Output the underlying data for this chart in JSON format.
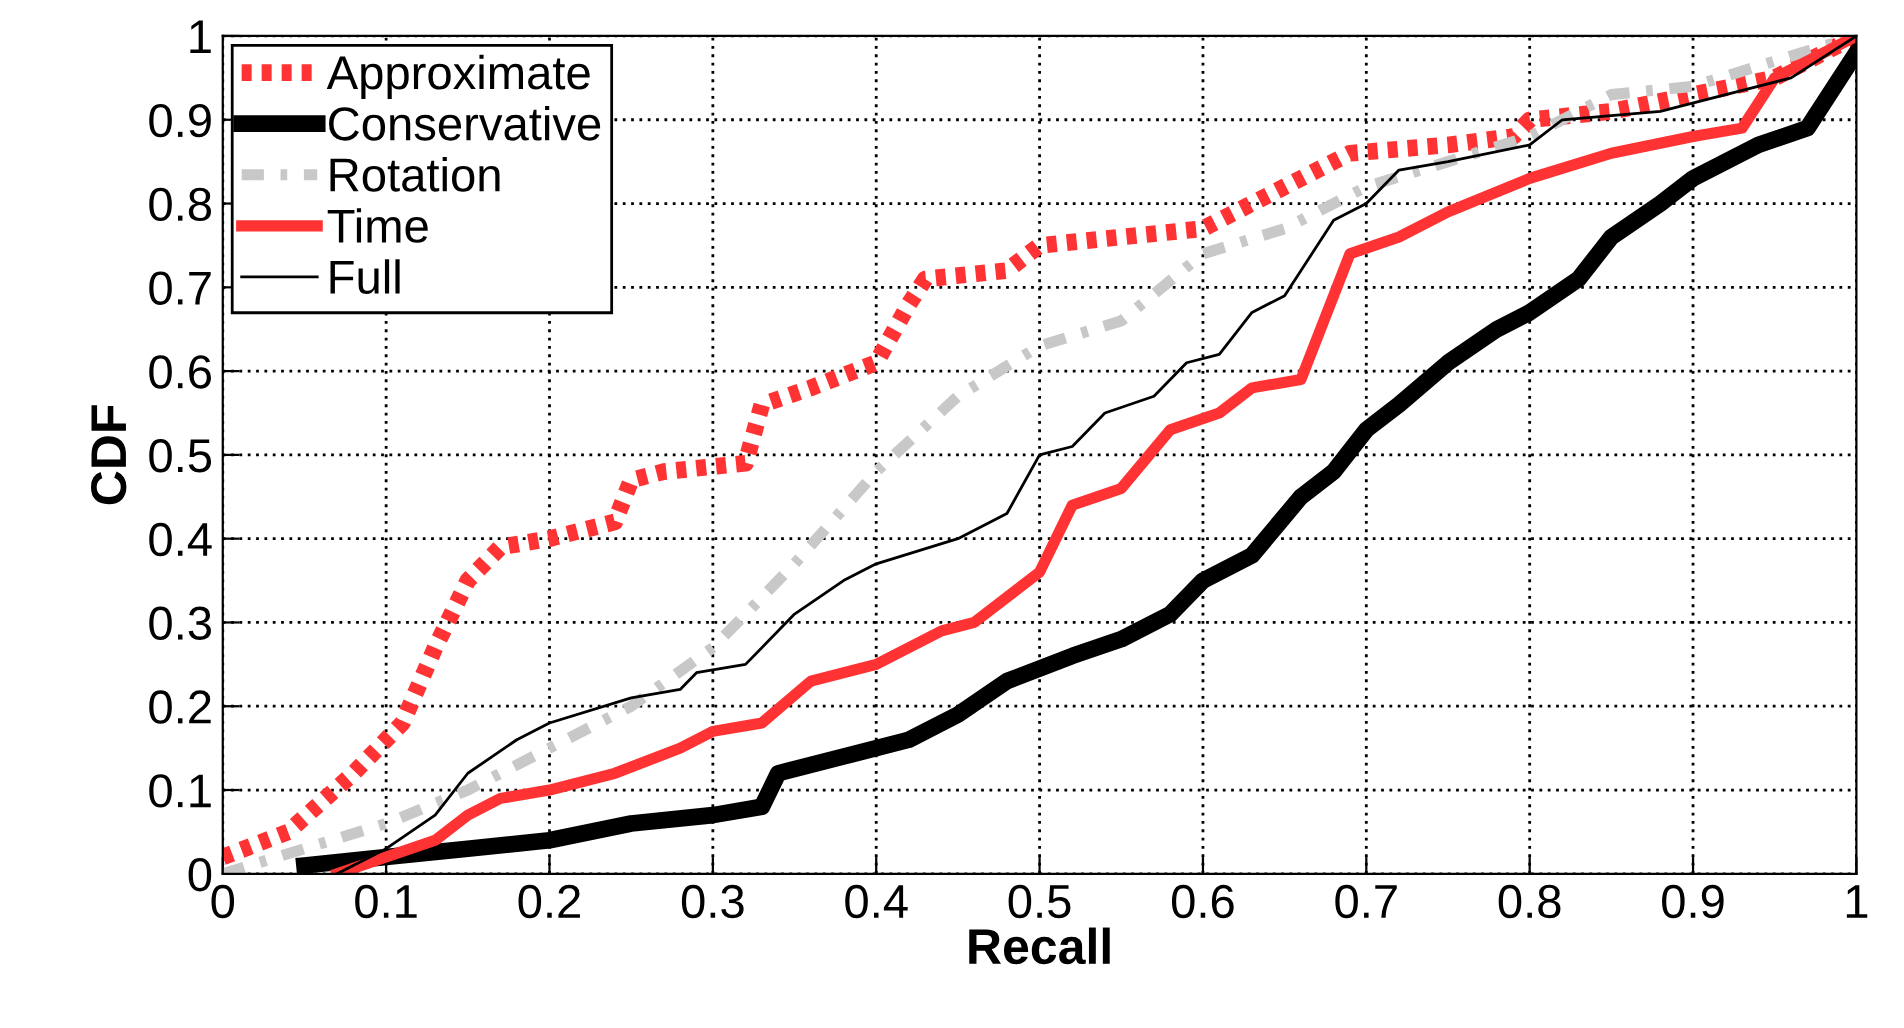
{
  "chart_data": {
    "type": "line",
    "xlabel": "Recall",
    "ylabel": "CDF",
    "xlim": [
      0,
      1
    ],
    "ylim": [
      0,
      1
    ],
    "xticks": [
      0,
      0.1,
      0.2,
      0.3,
      0.4,
      0.5,
      0.6,
      0.7,
      0.8,
      0.9,
      1
    ],
    "yticks": [
      0,
      0.1,
      0.2,
      0.3,
      0.4,
      0.5,
      0.6,
      0.7,
      0.8,
      0.9,
      1
    ],
    "grid": true,
    "legend": "top left",
    "marker": "none",
    "series": [
      {
        "name": "Approximate",
        "color": "#ff3333",
        "line_style": "dotted",
        "x": [
          0,
          0.04,
          0.08,
          0.11,
          0.13,
          0.15,
          0.17,
          0.2,
          0.24,
          0.25,
          0.27,
          0.32,
          0.33,
          0.36,
          0.4,
          0.42,
          0.43,
          0.48,
          0.5,
          0.55,
          0.6,
          0.65,
          0.69,
          0.75,
          0.79,
          0.8,
          0.85,
          0.9,
          0.95,
          1
        ],
        "values": [
          0.02,
          0.05,
          0.12,
          0.18,
          0.27,
          0.35,
          0.39,
          0.4,
          0.42,
          0.47,
          0.48,
          0.49,
          0.56,
          0.58,
          0.61,
          0.68,
          0.71,
          0.72,
          0.75,
          0.76,
          0.77,
          0.82,
          0.86,
          0.87,
          0.88,
          0.9,
          0.91,
          0.93,
          0.95,
          1
        ]
      },
      {
        "name": "Conservative",
        "color": "#000000",
        "line_style": "solid",
        "x": [
          0.05,
          0.1,
          0.15,
          0.2,
          0.25,
          0.3,
          0.33,
          0.34,
          0.38,
          0.42,
          0.45,
          0.48,
          0.52,
          0.55,
          0.58,
          0.6,
          0.63,
          0.66,
          0.68,
          0.7,
          0.72,
          0.75,
          0.78,
          0.8,
          0.83,
          0.85,
          0.88,
          0.9,
          0.94,
          0.97,
          1
        ],
        "values": [
          0.01,
          0.02,
          0.03,
          0.04,
          0.06,
          0.07,
          0.08,
          0.12,
          0.14,
          0.16,
          0.19,
          0.23,
          0.26,
          0.28,
          0.31,
          0.35,
          0.38,
          0.45,
          0.48,
          0.53,
          0.56,
          0.61,
          0.65,
          0.67,
          0.71,
          0.76,
          0.8,
          0.83,
          0.87,
          0.89,
          0.98
        ]
      },
      {
        "name": "Rotation",
        "color": "#c8c8c8",
        "line_style": "dashdot",
        "x": [
          0,
          0.05,
          0.1,
          0.15,
          0.2,
          0.25,
          0.3,
          0.35,
          0.4,
          0.45,
          0.5,
          0.55,
          0.6,
          0.65,
          0.7,
          0.75,
          0.8,
          0.85,
          0.9,
          0.95,
          1
        ],
        "values": [
          0,
          0.03,
          0.06,
          0.1,
          0.15,
          0.2,
          0.27,
          0.37,
          0.48,
          0.57,
          0.63,
          0.66,
          0.74,
          0.77,
          0.82,
          0.85,
          0.88,
          0.93,
          0.94,
          0.97,
          1
        ]
      },
      {
        "name": "Time",
        "color": "#ff3333",
        "line_style": "solid",
        "x": [
          0.07,
          0.1,
          0.13,
          0.15,
          0.17,
          0.2,
          0.24,
          0.28,
          0.3,
          0.33,
          0.36,
          0.4,
          0.44,
          0.46,
          0.5,
          0.52,
          0.55,
          0.58,
          0.61,
          0.63,
          0.66,
          0.69,
          0.72,
          0.75,
          0.8,
          0.85,
          0.9,
          0.93,
          0.95,
          1
        ],
        "values": [
          0,
          0.02,
          0.04,
          0.07,
          0.09,
          0.1,
          0.12,
          0.15,
          0.17,
          0.18,
          0.23,
          0.25,
          0.29,
          0.3,
          0.36,
          0.44,
          0.46,
          0.53,
          0.55,
          0.58,
          0.59,
          0.74,
          0.76,
          0.79,
          0.83,
          0.86,
          0.88,
          0.89,
          0.95,
          1
        ]
      },
      {
        "name": "Full",
        "color": "#000000",
        "line_style": "solid",
        "x": [
          0.07,
          0.1,
          0.13,
          0.15,
          0.18,
          0.2,
          0.25,
          0.28,
          0.29,
          0.32,
          0.35,
          0.38,
          0.4,
          0.45,
          0.48,
          0.5,
          0.52,
          0.54,
          0.57,
          0.59,
          0.61,
          0.63,
          0.65,
          0.68,
          0.7,
          0.72,
          0.75,
          0.8,
          0.82,
          0.88,
          0.92,
          0.96,
          1
        ],
        "values": [
          0,
          0.03,
          0.07,
          0.12,
          0.16,
          0.18,
          0.21,
          0.22,
          0.24,
          0.25,
          0.31,
          0.35,
          0.37,
          0.4,
          0.43,
          0.5,
          0.51,
          0.55,
          0.57,
          0.61,
          0.62,
          0.67,
          0.69,
          0.78,
          0.8,
          0.84,
          0.85,
          0.87,
          0.9,
          0.91,
          0.93,
          0.95,
          1
        ]
      }
    ]
  }
}
